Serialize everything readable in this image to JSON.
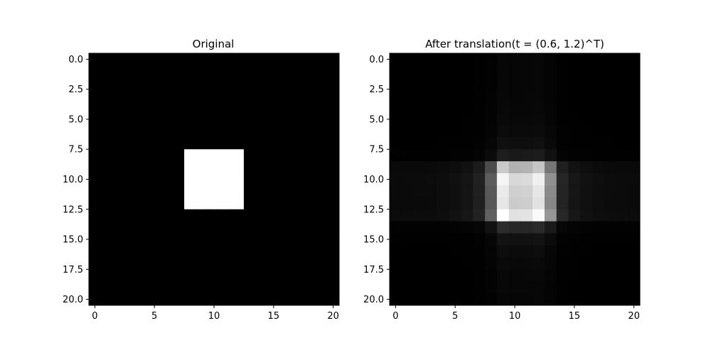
{
  "chart_data": [
    {
      "type": "heatmap",
      "title": "Original",
      "colormap": "gray",
      "xlim": [
        -0.5,
        20.5
      ],
      "ylim": [
        20.5,
        -0.5
      ],
      "x_ticks": [
        "0",
        "5",
        "10",
        "15",
        "20"
      ],
      "y_ticks": [
        "0.0",
        "2.5",
        "5.0",
        "7.5",
        "10.0",
        "12.5",
        "15.0",
        "17.5",
        "20.0"
      ],
      "size": [
        21,
        21
      ],
      "background_value": 0,
      "square": {
        "rows": [
          8,
          12
        ],
        "cols": [
          8,
          12
        ],
        "value": 1
      }
    },
    {
      "type": "heatmap",
      "title": "After translation(t = (0.6, 1.2)^T)",
      "colormap": "gray",
      "xlim": [
        -0.5,
        20.5
      ],
      "ylim": [
        20.5,
        -0.5
      ],
      "x_ticks": [
        "0",
        "5",
        "10",
        "15",
        "20"
      ],
      "y_ticks": [
        "0.0",
        "2.5",
        "5.0",
        "7.5",
        "10.0",
        "12.5",
        "15.0",
        "17.5",
        "20.0"
      ],
      "size": [
        21,
        21
      ],
      "translation": [
        0.6,
        1.2
      ]
    }
  ]
}
